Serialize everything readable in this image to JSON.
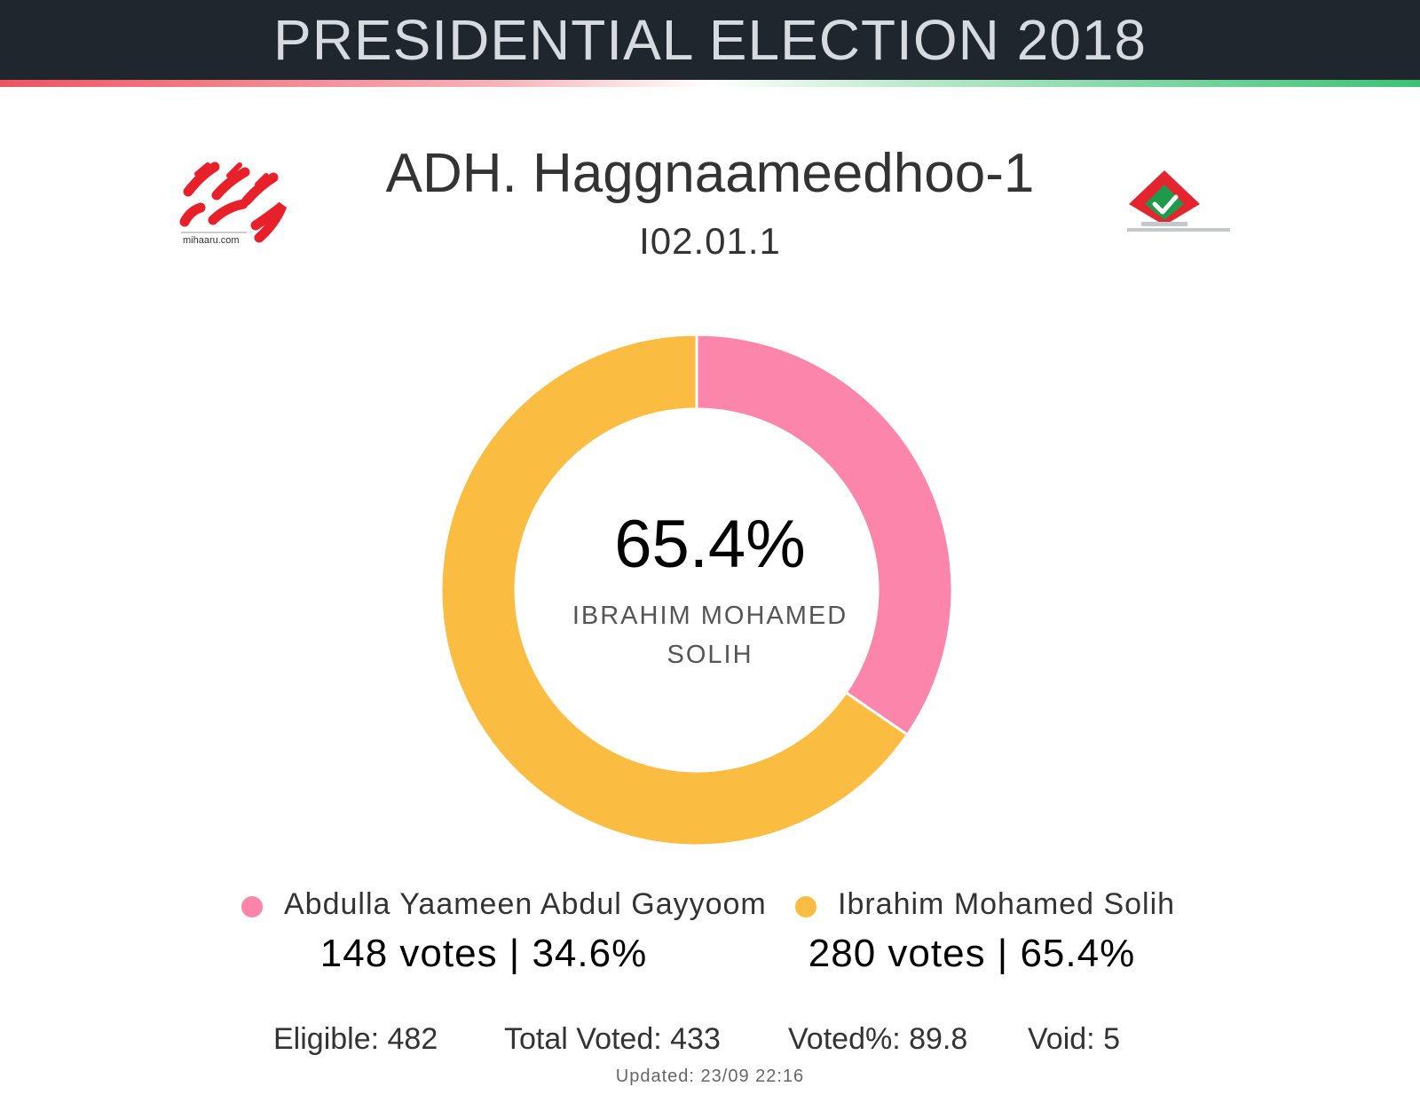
{
  "header": {
    "title": "PRESIDENTIAL ELECTION 2018"
  },
  "logos": {
    "left_text": "mihaaru.com"
  },
  "page": {
    "title": "ADH. Haggnaameedhoo-1",
    "subtitle": "I02.01.1"
  },
  "colors": {
    "header_bg": "#20262e",
    "series_1": "#fc86ab",
    "series_2": "#fbbc42",
    "accent_red": "#ee5460",
    "accent_green": "#3cc274"
  },
  "chart_data": {
    "type": "pie",
    "series": [
      {
        "name": "Abdulla Yaameen Abdul Gayyoom",
        "votes": 148,
        "percent": 34.6,
        "color": "#fc86ab"
      },
      {
        "name": "Ibrahim Mohamed Solih",
        "votes": 280,
        "percent": 65.4,
        "color": "#fbbc42"
      }
    ],
    "center": {
      "value": "65.4%",
      "label": "IBRAHIM MOHAMED SOLIH"
    }
  },
  "legend": [
    {
      "name": "Abdulla Yaameen Abdul Gayyoom",
      "summary": "148 votes | 34.6%"
    },
    {
      "name": "Ibrahim Mohamed Solih",
      "summary": "280 votes | 65.4%"
    }
  ],
  "stats": {
    "eligible": "Eligible: 482",
    "total_voted": "Total Voted: 433",
    "voted_pct": "Voted%: 89.8",
    "void": "Void: 5"
  },
  "updated": "Updated: 23/09 22:16"
}
